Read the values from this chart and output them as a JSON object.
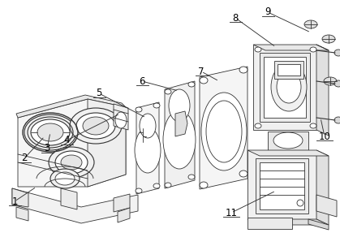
{
  "bg_color": "#ffffff",
  "line_color": "#333333",
  "label_color": "#000000",
  "fig_width": 4.19,
  "fig_height": 2.87,
  "dpi": 100,
  "label_fontsize": 8.5
}
